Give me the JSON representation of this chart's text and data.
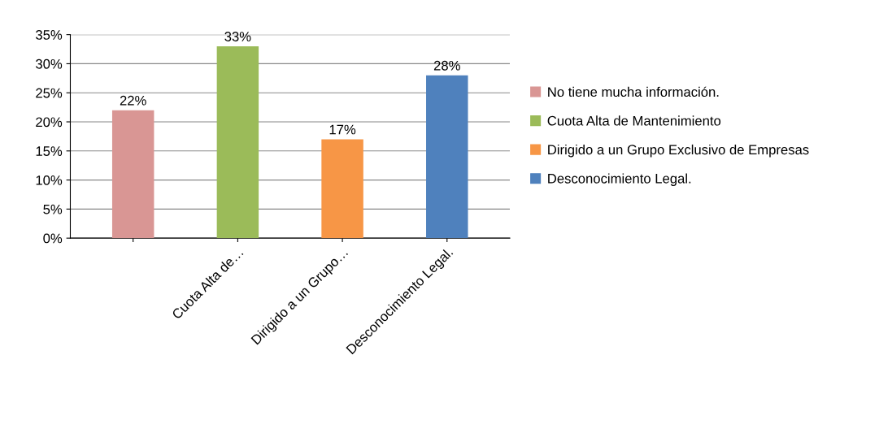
{
  "chart_data": {
    "type": "bar",
    "categories": [
      null,
      "Cuota Alta de…",
      "Dirigido a un Grupo…",
      "Desconocimiento Legal."
    ],
    "series": [
      {
        "name": "No tiene mucha información.",
        "color": "#d99694",
        "values": [
          22,
          null,
          null,
          null
        ],
        "value_labels": [
          "22%",
          null,
          null,
          null
        ]
      },
      {
        "name": "Cuota Alta de Mantenimiento",
        "color": "#9bbb59",
        "values": [
          null,
          33,
          null,
          null
        ],
        "value_labels": [
          null,
          "33%",
          null,
          null
        ]
      },
      {
        "name": "Dirigido a un Grupo Exclusivo de Empresas",
        "color": "#f79646",
        "values": [
          null,
          null,
          17,
          null
        ],
        "value_labels": [
          null,
          null,
          "17%",
          null
        ]
      },
      {
        "name": "Desconocimiento Legal.",
        "color": "#4f81bd",
        "values": [
          null,
          null,
          null,
          28
        ],
        "value_labels": [
          null,
          null,
          null,
          "28%"
        ]
      }
    ],
    "ylim": [
      0,
      35
    ],
    "yticks": [
      {
        "value": 0,
        "label": "0%"
      },
      {
        "value": 5,
        "label": "5%"
      },
      {
        "value": 10,
        "label": "10%"
      },
      {
        "value": 15,
        "label": "15%"
      },
      {
        "value": 20,
        "label": "20%"
      },
      {
        "value": 25,
        "label": "25%"
      },
      {
        "value": 30,
        "label": "30%"
      },
      {
        "value": 35,
        "label": "35%"
      }
    ],
    "grid": "y",
    "legend": "right"
  }
}
